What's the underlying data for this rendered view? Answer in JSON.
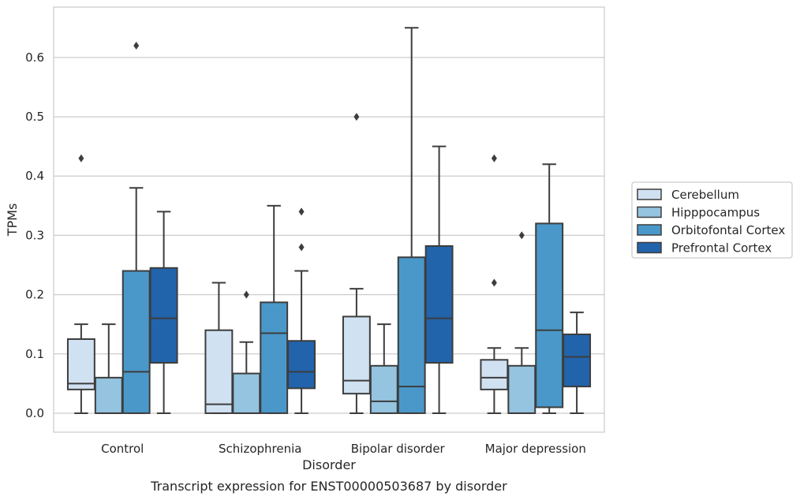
{
  "chart_data": {
    "type": "boxplot",
    "xlabel": "Disorder",
    "ylabel": "TPMs",
    "caption": "Transcript expression for ENST00000503687 by disorder",
    "categories": [
      "Control",
      "Schizophrenia",
      "Bipolar disorder",
      "Major depression"
    ],
    "ylim": [
      -0.032,
      0.685
    ],
    "yticks": [
      0.0,
      0.1,
      0.2,
      0.3,
      0.4,
      0.5,
      0.6
    ],
    "ytick_labels": [
      "0.0",
      "0.1",
      "0.2",
      "0.3",
      "0.4",
      "0.5",
      "0.6"
    ],
    "grid": "horizontal",
    "legend_position": "outside-right",
    "series": [
      {
        "name": "Cerebellum",
        "color": "#d0e1f2",
        "boxes": [
          {
            "whislo": 0.0,
            "q1": 0.04,
            "med": 0.05,
            "q3": 0.125,
            "whishi": 0.15,
            "fliers": [
              0.43
            ]
          },
          {
            "whislo": 0.0,
            "q1": 0.0,
            "med": 0.015,
            "q3": 0.14,
            "whishi": 0.22,
            "fliers": []
          },
          {
            "whislo": 0.0,
            "q1": 0.033,
            "med": 0.055,
            "q3": 0.163,
            "whishi": 0.21,
            "fliers": [
              0.5
            ]
          },
          {
            "whislo": 0.0,
            "q1": 0.04,
            "med": 0.06,
            "q3": 0.09,
            "whishi": 0.11,
            "fliers": [
              0.43,
              0.22
            ]
          }
        ]
      },
      {
        "name": "Hipppocampus",
        "color": "#94c4df",
        "boxes": [
          {
            "whislo": 0.0,
            "q1": 0.0,
            "med": 0.0,
            "q3": 0.06,
            "whishi": 0.15,
            "fliers": []
          },
          {
            "whislo": 0.0,
            "q1": 0.0,
            "med": 0.0,
            "q3": 0.067,
            "whishi": 0.12,
            "fliers": [
              0.2
            ]
          },
          {
            "whislo": 0.0,
            "q1": 0.0,
            "med": 0.02,
            "q3": 0.08,
            "whishi": 0.15,
            "fliers": []
          },
          {
            "whislo": 0.0,
            "q1": 0.0,
            "med": 0.0,
            "q3": 0.08,
            "whishi": 0.11,
            "fliers": [
              0.3
            ]
          }
        ]
      },
      {
        "name": "Orbitofontal Cortex",
        "color": "#4a98c9",
        "boxes": [
          {
            "whislo": 0.0,
            "q1": 0.0,
            "med": 0.07,
            "q3": 0.24,
            "whishi": 0.38,
            "fliers": [
              0.62
            ]
          },
          {
            "whislo": 0.0,
            "q1": 0.0,
            "med": 0.135,
            "q3": 0.187,
            "whishi": 0.35,
            "fliers": []
          },
          {
            "whislo": 0.0,
            "q1": 0.0,
            "med": 0.045,
            "q3": 0.263,
            "whishi": 0.65,
            "fliers": []
          },
          {
            "whislo": 0.0,
            "q1": 0.01,
            "med": 0.14,
            "q3": 0.32,
            "whishi": 0.42,
            "fliers": []
          }
        ]
      },
      {
        "name": "Prefrontal Cortex",
        "color": "#2164ab",
        "boxes": [
          {
            "whislo": 0.0,
            "q1": 0.085,
            "med": 0.16,
            "q3": 0.245,
            "whishi": 0.34,
            "fliers": []
          },
          {
            "whislo": 0.0,
            "q1": 0.042,
            "med": 0.07,
            "q3": 0.122,
            "whishi": 0.24,
            "fliers": [
              0.34,
              0.28
            ]
          },
          {
            "whislo": 0.0,
            "q1": 0.085,
            "med": 0.16,
            "q3": 0.282,
            "whishi": 0.45,
            "fliers": []
          },
          {
            "whislo": 0.0,
            "q1": 0.045,
            "med": 0.095,
            "q3": 0.133,
            "whishi": 0.17,
            "fliers": []
          }
        ]
      }
    ]
  }
}
